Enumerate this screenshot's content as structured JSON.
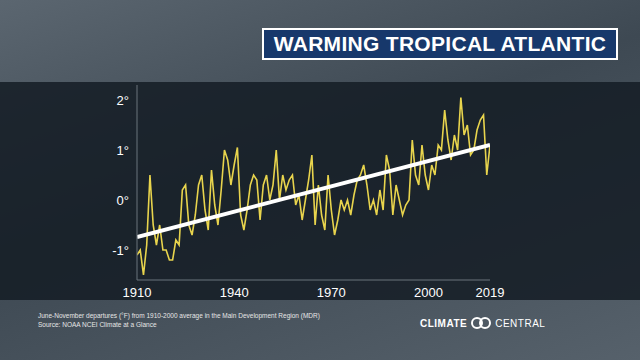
{
  "chart_data": {
    "type": "line",
    "title": "WARMING TROPICAL ATLANTIC",
    "annotations": [
      "June-November departures (°F) from 1910-2000 average in the Main Development Region (MDR)",
      "Source: NOAA NCEI Climate at a Glance"
    ],
    "branding": "CLIMATE CENTRAL",
    "x": [
      1910,
      1911,
      1912,
      1913,
      1914,
      1915,
      1916,
      1917,
      1918,
      1919,
      1920,
      1921,
      1922,
      1923,
      1924,
      1925,
      1926,
      1927,
      1928,
      1929,
      1930,
      1931,
      1932,
      1933,
      1934,
      1935,
      1936,
      1937,
      1938,
      1939,
      1940,
      1941,
      1942,
      1943,
      1944,
      1945,
      1946,
      1947,
      1948,
      1949,
      1950,
      1951,
      1952,
      1953,
      1954,
      1955,
      1956,
      1957,
      1958,
      1959,
      1960,
      1961,
      1962,
      1963,
      1964,
      1965,
      1966,
      1967,
      1968,
      1969,
      1970,
      1971,
      1972,
      1973,
      1974,
      1975,
      1976,
      1977,
      1978,
      1979,
      1980,
      1981,
      1982,
      1983,
      1984,
      1985,
      1986,
      1987,
      1988,
      1989,
      1990,
      1991,
      1992,
      1993,
      1994,
      1995,
      1996,
      1997,
      1998,
      1999,
      2000,
      2001,
      2002,
      2003,
      2004,
      2005,
      2006,
      2007,
      2008,
      2009,
      2010,
      2011,
      2012,
      2013,
      2014,
      2015,
      2016,
      2017,
      2018,
      2019
    ],
    "values": [
      -1.1,
      -1.0,
      -1.5,
      -0.9,
      0.5,
      -0.5,
      -0.9,
      -0.5,
      -1.0,
      -1.0,
      -1.2,
      -1.2,
      -0.8,
      -0.9,
      0.2,
      0.3,
      -0.5,
      -0.7,
      -0.3,
      0.3,
      0.5,
      -0.2,
      -0.6,
      0.6,
      -0.1,
      -0.5,
      0.2,
      1.0,
      0.8,
      0.3,
      0.7,
      1.05,
      -0.3,
      -0.6,
      -0.2,
      0.3,
      0.5,
      0.4,
      -0.4,
      0.3,
      0.5,
      0.0,
      0.3,
      1.0,
      0.0,
      0.5,
      0.2,
      0.4,
      0.5,
      -0.1,
      0.1,
      -0.4,
      0.0,
      0.4,
      0.9,
      -0.5,
      0.3,
      -0.3,
      -0.6,
      0.5,
      -0.2,
      -0.7,
      -0.4,
      0.0,
      -0.2,
      0.0,
      -0.3,
      0.1,
      0.4,
      0.5,
      0.7,
      0.3,
      -0.2,
      0.0,
      -0.3,
      0.2,
      -0.2,
      0.9,
      0.6,
      -0.3,
      0.3,
      0.0,
      -0.3,
      -0.1,
      0.0,
      1.2,
      0.5,
      0.3,
      1.1,
      0.5,
      0.2,
      0.7,
      0.5,
      1.1,
      1.0,
      1.8,
      1.2,
      0.8,
      1.3,
      1.0,
      2.05,
      1.3,
      1.5,
      0.9,
      1.0,
      1.4,
      1.6,
      1.7,
      0.5,
      1.1
    ],
    "color": "#e8d44d",
    "trend": {
      "x": [
        1910,
        2019
      ],
      "values": [
        -0.74,
        1.1
      ],
      "color": "#ffffff"
    },
    "xlim": [
      1910,
      2019
    ],
    "xticks": [
      1910,
      1940,
      1970,
      2000,
      2019
    ],
    "ylim": [
      -1.6,
      2.3
    ],
    "yticks": [
      {
        "value": -1,
        "label": "-1°"
      },
      {
        "value": 0,
        "label": "0°"
      },
      {
        "value": 1,
        "label": "1°"
      },
      {
        "value": 2,
        "label": "2°"
      }
    ],
    "grid": false
  }
}
